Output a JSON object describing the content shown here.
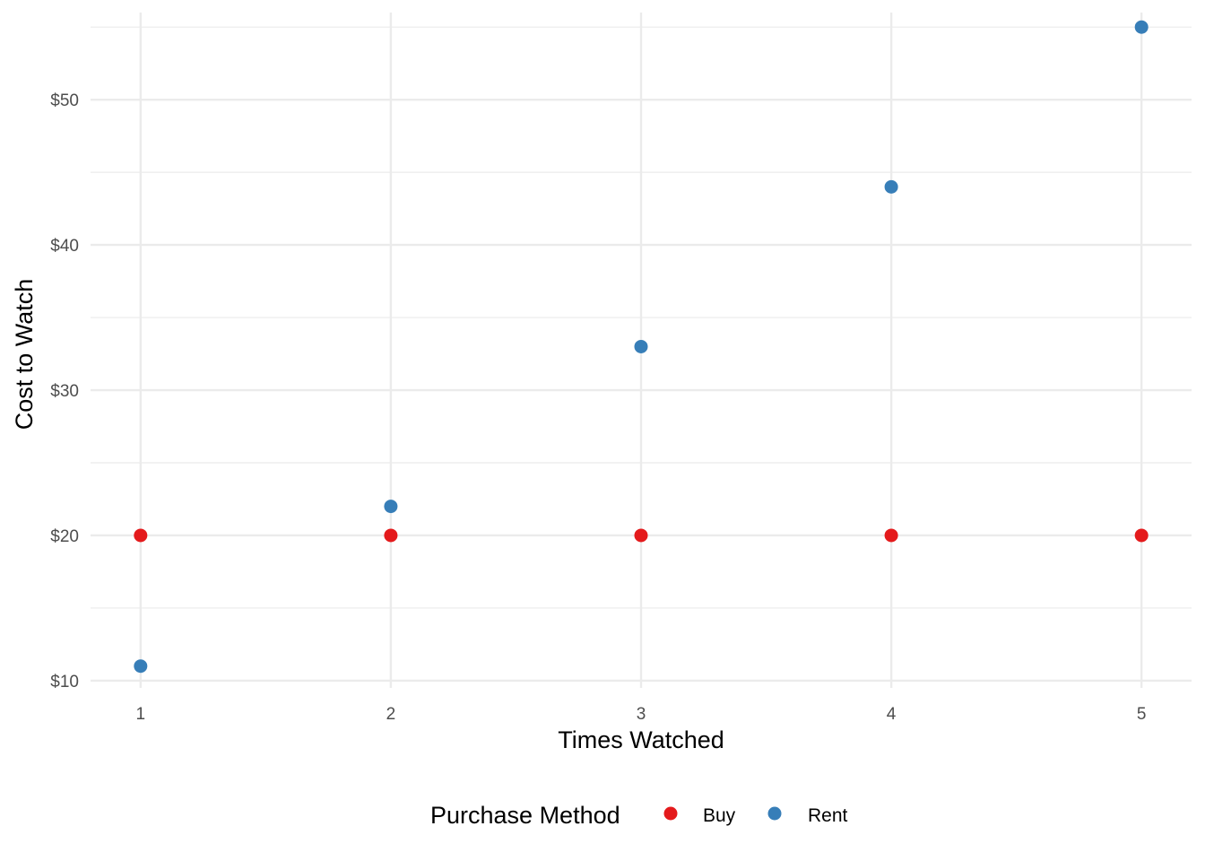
{
  "chart_data": {
    "type": "scatter",
    "title": "",
    "xlabel": "Times Watched",
    "ylabel": "Cost to Watch",
    "x": [
      1,
      2,
      3,
      4,
      5
    ],
    "x_tick_labels": [
      "1",
      "2",
      "3",
      "4",
      "5"
    ],
    "y_ticks": [
      10,
      20,
      30,
      40,
      50
    ],
    "y_tick_labels": [
      "$10",
      "$20",
      "$30",
      "$40",
      "$50"
    ],
    "xlim": [
      0.8,
      5.2
    ],
    "ylim": [
      9.5,
      56
    ],
    "grid": true,
    "legend": {
      "title": "Purchase Method",
      "position": "bottom"
    },
    "series": [
      {
        "name": "Buy",
        "color": "#E41A1C",
        "values": [
          20,
          20,
          20,
          20,
          20
        ]
      },
      {
        "name": "Rent",
        "color": "#377EB8",
        "values": [
          11,
          22,
          33,
          44,
          55
        ]
      }
    ]
  }
}
